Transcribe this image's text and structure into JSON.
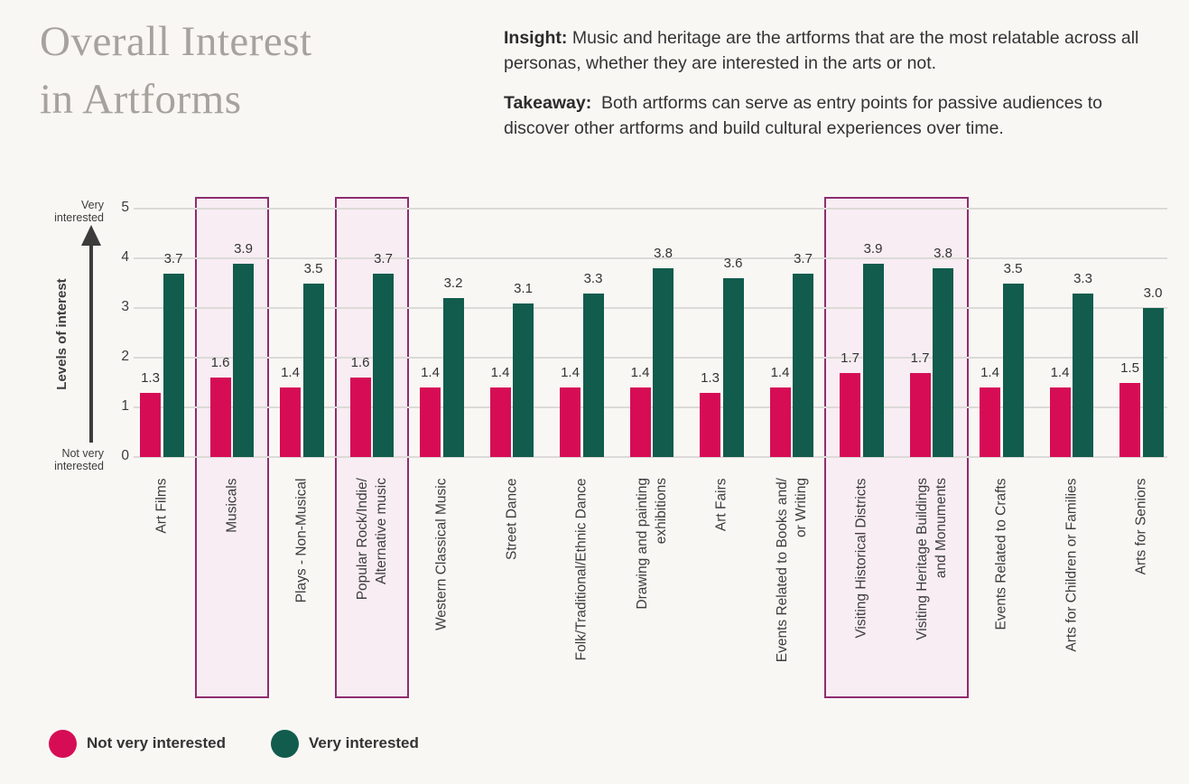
{
  "header": {
    "title_line1": "Overall Interest",
    "title_line2": "in Artforms"
  },
  "notes": {
    "insight_label": "Insight:",
    "insight_text": "Music and heritage are the artforms that are the most relatable across all personas, whether they are interested in the arts or not.",
    "takeaway_label": "Takeaway:",
    "takeaway_text": "Both artforms can serve as entry points for passive audiences to discover other artforms and build cultural experiences over time."
  },
  "colors": {
    "background": "#f9f7f4",
    "title_gray": "#a6a29d",
    "grid": "#dcdad8",
    "axis_text": "#3c3c3c",
    "highlight_fill": "#f8edf3",
    "highlight_border": "#8e2d6f"
  },
  "chart_data": {
    "type": "bar",
    "title": "Overall Interest in Artforms",
    "categories": [
      "Art Films",
      "Musicals",
      "Plays - Non-Musical",
      "Popular Rock/Indie/\nAlternative music",
      "Western Classical Music",
      "Street Dance",
      "Folk/Traditional/Ethnic Dance",
      "Drawing and painting\nexhibitions",
      "Art Fairs",
      "Events Related to Books and/\nor Writing",
      "Visiting Historical Districts",
      "Visiting Heritage Buildings\nand Monuments",
      "Events Related to Crafts",
      "Arts for Children or Families",
      "Arts for Seniors"
    ],
    "series": [
      {
        "name": "Not very interested",
        "color": "#d60d55",
        "values": [
          1.3,
          1.6,
          1.4,
          1.6,
          1.4,
          1.4,
          1.4,
          1.4,
          1.3,
          1.4,
          1.7,
          1.7,
          1.4,
          1.4,
          1.5
        ]
      },
      {
        "name": "Very interested",
        "color": "#115c4d",
        "values": [
          3.7,
          3.9,
          3.5,
          3.7,
          3.2,
          3.1,
          3.3,
          3.8,
          3.6,
          3.7,
          3.9,
          3.8,
          3.5,
          3.3,
          3.0
        ]
      }
    ],
    "ylim": [
      0,
      5
    ],
    "yticks": [
      0,
      1,
      2,
      3,
      4,
      5
    ],
    "ylabel": "Levels of interest",
    "y_axis_top_label": "Very\ninterested",
    "y_axis_bottom_label": "Not very\ninterested",
    "grid": true,
    "legend_position": "bottom",
    "value_labels": true,
    "highlights": [
      {
        "from": 1,
        "to": 1
      },
      {
        "from": 3,
        "to": 3
      },
      {
        "from": 10,
        "to": 11
      }
    ]
  }
}
